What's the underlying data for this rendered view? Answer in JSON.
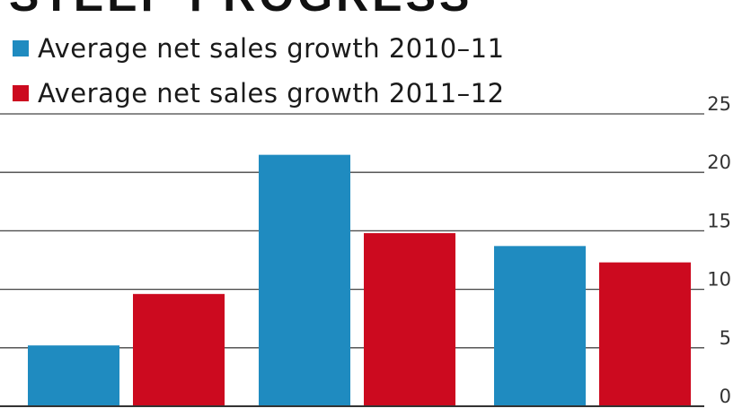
{
  "chart_data": {
    "type": "bar",
    "title": "STEEP PROGRESS",
    "categories": [
      "",
      "",
      ""
    ],
    "series": [
      {
        "name": "Average net sales growth 2010–11",
        "color": "#1f8bc0",
        "values": [
          5.2,
          21.5,
          13.7
        ]
      },
      {
        "name": "Average net sales growth 2011–12",
        "color": "#cc0a1f",
        "values": [
          9.6,
          14.8,
          12.3
        ]
      }
    ],
    "ylim": [
      0,
      25
    ],
    "yticks": [
      0,
      5,
      10,
      15,
      20,
      25
    ],
    "y_axis_position": "right",
    "grid": true,
    "legend_position": "top-left"
  }
}
